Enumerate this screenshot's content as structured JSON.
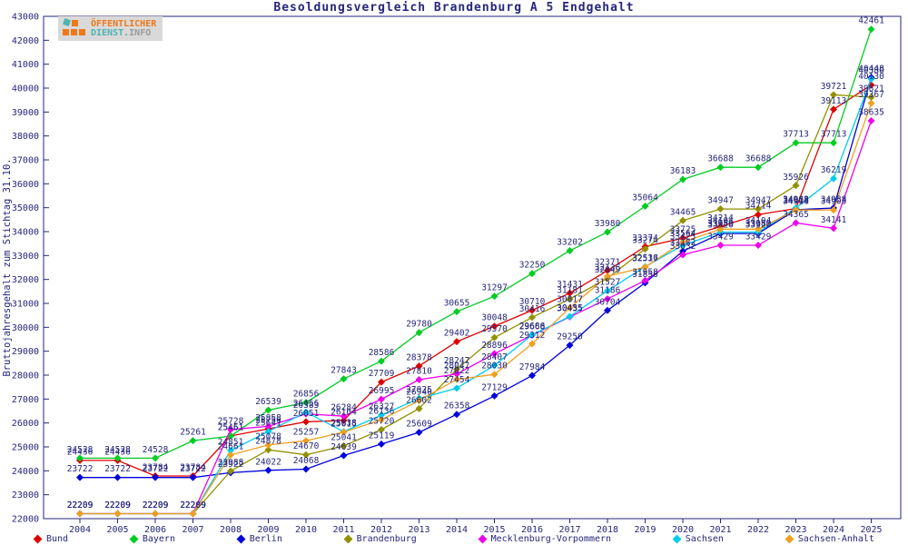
{
  "title": "Besoldungsvergleich Brandenburg A 5 Endgehalt",
  "logo": {
    "line1": "ÖFFENTLICHER",
    "line2_part1": "DIENST.",
    "line2_part2": "INFO",
    "colors": {
      "orange": "#f07818",
      "teal": "#4db3ae",
      "gray": "#9a9a9a"
    }
  },
  "chart_data": {
    "type": "line",
    "title": "Besoldungsvergleich Brandenburg A 5 Endgehalt",
    "xlabel": "",
    "ylabel": "Bruttojahresgehalt zum Stichtag 31.10.",
    "ylim": [
      22000,
      43000
    ],
    "ytick_step": 1000,
    "grid": false,
    "legend_position": "bottom",
    "marker": "diamond",
    "point_labels": true,
    "text_color": "#26267d",
    "axis_color": "#26267d",
    "categories": [
      2004,
      2005,
      2006,
      2007,
      2008,
      2009,
      2010,
      2011,
      2012,
      2013,
      2014,
      2015,
      2016,
      2017,
      2018,
      2019,
      2020,
      2021,
      2022,
      2023,
      2024,
      2025
    ],
    "series": [
      {
        "name": "Bund",
        "color": "#dd0000",
        "values": [
          24436,
          24436,
          23784,
          23784,
          25461,
          25756,
          26051,
          26104,
          27709,
          28378,
          29402,
          30048,
          30710,
          31431,
          32371,
          33374,
          33725,
          34214,
          34714,
          34963,
          39113,
          40130
        ]
      },
      {
        "name": "Bayern",
        "color": "#00cc22",
        "values": [
          24528,
          24528,
          24528,
          25261,
          25451,
          26539,
          26856,
          27843,
          28586,
          29780,
          30655,
          31297,
          32250,
          33202,
          33980,
          35064,
          36183,
          36688,
          36688,
          37713,
          37713,
          42461
        ]
      },
      {
        "name": "Berlin",
        "color": "#0000dd",
        "values": [
          23722,
          23722,
          23722,
          23722,
          23922,
          24022,
          24068,
          24639,
          25119,
          25609,
          26358,
          27129,
          27984,
          29250,
          30704,
          31858,
          33182,
          33920,
          33920,
          34914,
          34988,
          40448
        ]
      },
      {
        "name": "Brandenburg",
        "color": "#919100",
        "values": [
          22209,
          22209,
          22209,
          22209,
          23988,
          24878,
          24670,
          25041,
          25720,
          26602,
          28247,
          29570,
          30416,
          31181,
          32049,
          33274,
          34465,
          34947,
          34947,
          35926,
          39721,
          39621
        ]
      },
      {
        "name": "Mecklenburg-Vorpommern",
        "color": "#ee00ee",
        "values": [
          22209,
          22209,
          22209,
          22209,
          25728,
          25858,
          26383,
          26284,
          26995,
          27810,
          28047,
          28896,
          29668,
          30435,
          31186,
          31958,
          33032,
          33429,
          33429,
          34365,
          34141,
          38635
        ]
      },
      {
        "name": "Sachsen",
        "color": "#00ccee",
        "values": [
          22209,
          22209,
          22209,
          22209,
          24851,
          25641,
          26456,
          25638,
          26327,
          27025,
          27454,
          28407,
          29686,
          30455,
          31527,
          32536,
          33425,
          33980,
          33980,
          34988,
          36219,
          40380
        ]
      },
      {
        "name": "Sachsen-Anhalt",
        "color": "#f0a020",
        "values": [
          22209,
          22209,
          22209,
          22209,
          24661,
          25078,
          25257,
          25615,
          26136,
          26940,
          27822,
          28030,
          29312,
          30817,
          32136,
          32517,
          33564,
          34104,
          34104,
          34903,
          34903,
          39367
        ]
      }
    ]
  }
}
